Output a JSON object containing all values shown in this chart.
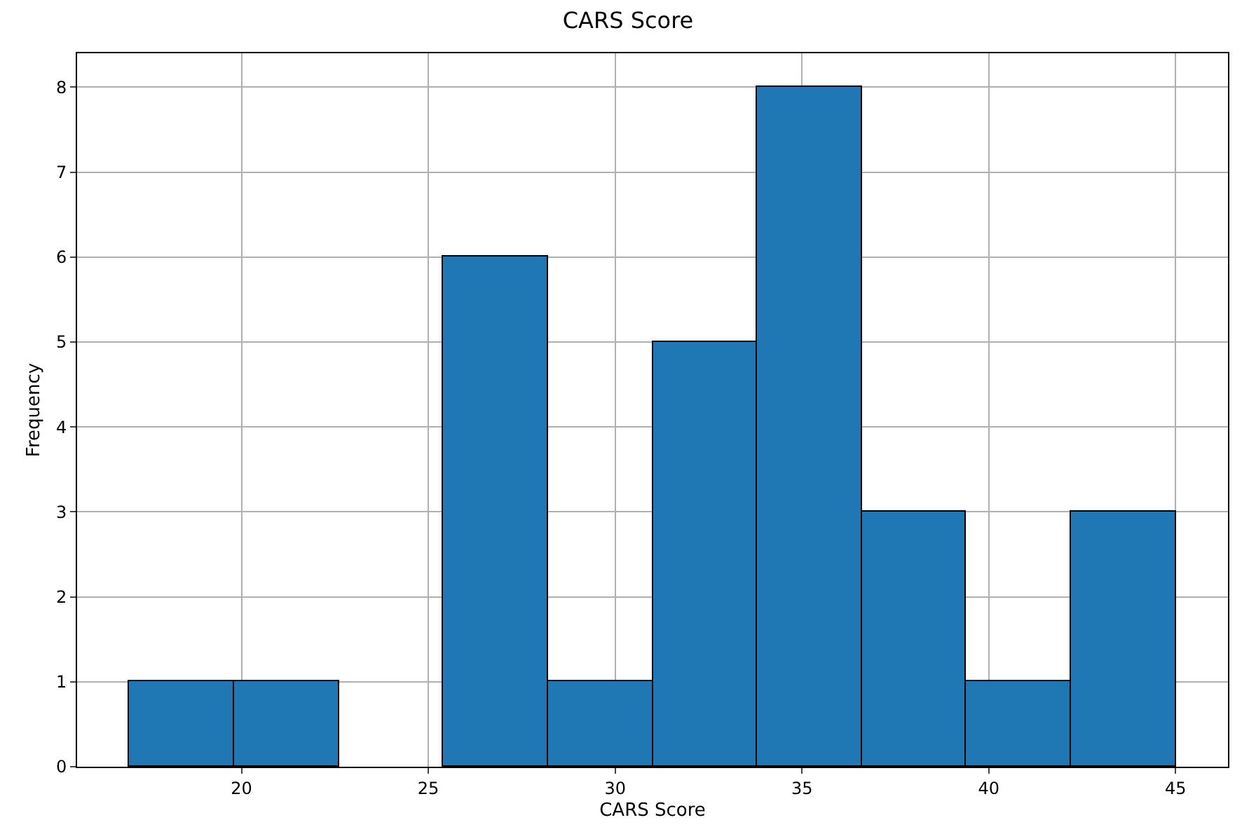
{
  "chart_data": {
    "type": "histogram",
    "title": "CARS Score",
    "xlabel": "CARS Score",
    "ylabel": "Frequency",
    "bins": [
      17,
      19.8,
      22.6,
      25.4,
      28.2,
      31,
      33.8,
      36.6,
      39.4,
      42.2,
      45
    ],
    "values": [
      1,
      1,
      0,
      6,
      1,
      5,
      8,
      3,
      1,
      3
    ],
    "color": "#1f77b4",
    "xlim": [
      15.6,
      46.4
    ],
    "xticks": [
      20,
      25,
      30,
      35,
      40,
      45
    ],
    "ylim": [
      0,
      8.4
    ],
    "yticks": [
      0,
      1,
      2,
      3,
      4,
      5,
      6,
      7,
      8
    ],
    "grid": true
  }
}
